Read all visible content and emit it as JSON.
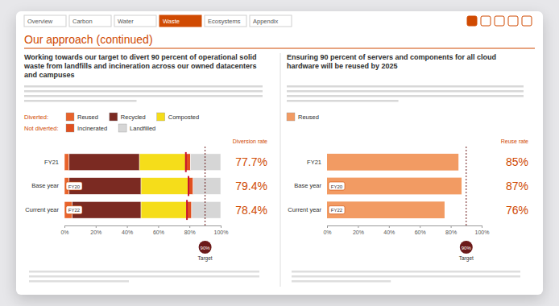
{
  "page": {
    "title": "Our approach (continued)",
    "tabs": [
      "Overview",
      "Carbon",
      "Water",
      "Waste",
      "Ecosystems",
      "Appendix"
    ],
    "active_tab": "Waste"
  },
  "chart_data": [
    {
      "type": "bar",
      "orientation": "horizontal",
      "stacked": true,
      "title": "Working towards our target to divert 90 percent of operational solid waste from landfills and incineration across our owned datacenters and campuses",
      "categories": [
        "FY21",
        "Base year",
        "Current year"
      ],
      "row_tags": [
        null,
        "FY20",
        "FY22"
      ],
      "series": [
        {
          "name": "Reused",
          "color": "#e8632b",
          "values": [
            3,
            3,
            5
          ]
        },
        {
          "name": "Recycled",
          "color": "#7b2a22",
          "values": [
            45,
            46,
            44
          ]
        },
        {
          "name": "Composted",
          "color": "#f5dd1a",
          "values": [
            29.7,
            30.4,
            29.4
          ]
        },
        {
          "name": "Incinerated",
          "color": "#e0501f",
          "values": [
            3,
            3,
            3
          ]
        },
        {
          "name": "Landfilled",
          "color": "#d6d6d6",
          "values": [
            19.3,
            17.6,
            18.6
          ]
        }
      ],
      "legend": "top-left",
      "legend_groups": [
        {
          "title": "Diverted:",
          "series": [
            0,
            1,
            2
          ]
        },
        {
          "title": "Not diverted:",
          "series": [
            3,
            4
          ]
        }
      ],
      "rate": {
        "title": "Diversion rate",
        "values": [
          77.7,
          79.4,
          78.4
        ],
        "value_labels": [
          "77.7%",
          "79.4%",
          "78.4%"
        ]
      },
      "target": {
        "value": 90,
        "label": "90%",
        "text": "Target"
      },
      "xlim": [
        0,
        100
      ],
      "xticks": [
        {
          "value": 0,
          "label": "0%"
        },
        {
          "value": 20,
          "label": "20%"
        },
        {
          "value": 40,
          "label": "40%"
        },
        {
          "value": 60,
          "label": "60%"
        },
        {
          "value": 80,
          "label": "80%"
        },
        {
          "value": 100,
          "label": "100%"
        }
      ],
      "grid": false
    },
    {
      "type": "bar",
      "orientation": "horizontal",
      "stacked": false,
      "title": "Ensuring 90 percent of servers and components for all cloud hardware will be reused by 2025",
      "categories": [
        "FY21",
        "Base year",
        "Current year"
      ],
      "row_tags": [
        null,
        "FY20",
        "FY22"
      ],
      "series": [
        {
          "name": "Reused",
          "color": "#f29b63",
          "values": [
            85,
            87,
            76
          ],
          "value_labels": [
            "85%",
            "87%",
            "76%"
          ]
        }
      ],
      "legend": "top-left",
      "data_labels": true,
      "data_labels_title": "Reuse rate",
      "target": {
        "value": 90,
        "label": "90%",
        "text": "Target"
      },
      "xlim": [
        0,
        100
      ],
      "xticks": [
        {
          "value": 0,
          "label": "0%"
        },
        {
          "value": 20,
          "label": "20%"
        },
        {
          "value": 40,
          "label": "40%"
        },
        {
          "value": 60,
          "label": "60%"
        },
        {
          "value": 80,
          "label": "80%"
        },
        {
          "value": 100,
          "label": "100%"
        }
      ],
      "grid": false
    }
  ]
}
